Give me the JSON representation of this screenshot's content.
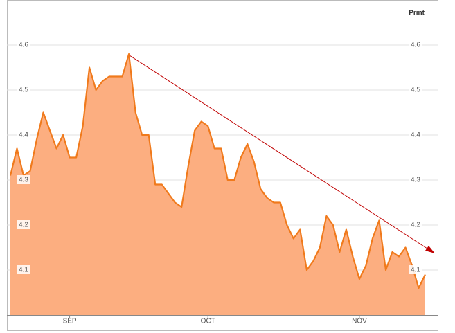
{
  "chart_data": {
    "type": "area",
    "print_button": "Print",
    "color": "#f07a1c",
    "fill": "#fcae80",
    "categories": [
      null,
      null,
      null,
      null,
      null,
      null,
      null,
      null,
      null,
      "SEP",
      null,
      null,
      null,
      null,
      null,
      null,
      null,
      null,
      null,
      null,
      null,
      null,
      null,
      null,
      null,
      null,
      null,
      null,
      null,
      null,
      "OCT",
      null,
      null,
      null,
      null,
      null,
      null,
      null,
      null,
      null,
      null,
      null,
      null,
      null,
      null,
      null,
      null,
      null,
      null,
      null,
      null,
      null,
      null,
      "NOV",
      null,
      null,
      null,
      null,
      null,
      null,
      null,
      null,
      null,
      null
    ],
    "values": [
      4.31,
      4.37,
      4.31,
      4.32,
      4.39,
      4.45,
      4.41,
      4.37,
      4.4,
      4.35,
      4.35,
      4.42,
      4.55,
      4.5,
      4.52,
      4.53,
      4.53,
      4.53,
      4.58,
      4.45,
      4.4,
      4.4,
      4.29,
      4.29,
      4.27,
      4.25,
      4.24,
      4.33,
      4.41,
      4.43,
      4.42,
      4.37,
      4.37,
      4.3,
      4.3,
      4.35,
      4.38,
      4.34,
      4.28,
      4.26,
      4.25,
      4.25,
      4.2,
      4.17,
      4.19,
      4.1,
      4.12,
      4.15,
      4.22,
      4.2,
      4.14,
      4.19,
      4.13,
      4.08,
      4.11,
      4.17,
      4.21,
      4.1,
      4.14,
      4.13,
      4.15,
      4.11,
      4.06,
      4.09
    ],
    "ylim": [
      4.0,
      4.7
    ],
    "yticks": [
      4.1,
      4.2,
      4.3,
      4.4,
      4.5,
      4.6
    ],
    "grid": true
  }
}
